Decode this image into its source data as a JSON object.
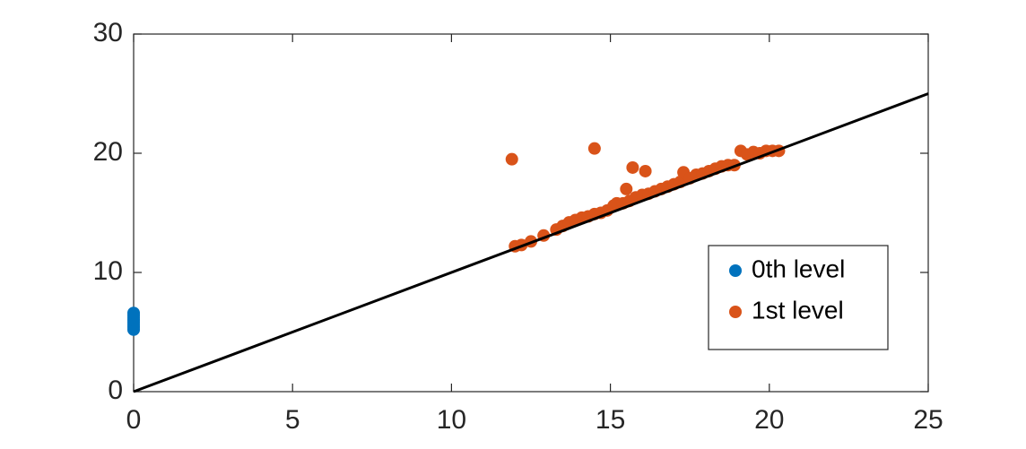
{
  "chart_data": {
    "type": "scatter",
    "xlim": [
      0,
      25
    ],
    "xticks": [
      0,
      5,
      10,
      15,
      20,
      25
    ],
    "ylim": [
      0,
      30
    ],
    "yticks": [
      0,
      10,
      20,
      30
    ],
    "legend": "southeast",
    "series": [
      {
        "name": "0th level",
        "color": "#0072BD",
        "x": [
          0,
          0,
          0,
          0,
          0,
          0,
          0,
          0
        ],
        "y": [
          5.2,
          5.4,
          5.6,
          5.8,
          6.0,
          6.2,
          6.4,
          6.6
        ]
      },
      {
        "name": "1st level",
        "color": "#D95319",
        "x": [
          12.0,
          12.2,
          12.5,
          12.9,
          13.3,
          13.5,
          13.7,
          13.9,
          14.1,
          14.3,
          14.5,
          14.7,
          14.9,
          15.1,
          15.2,
          15.4,
          15.6,
          15.8,
          16.0,
          16.2,
          16.4,
          16.6,
          16.8,
          17.0,
          17.2,
          17.3,
          17.5,
          17.7,
          17.9,
          18.1,
          18.3,
          18.5,
          18.7,
          18.9,
          19.1,
          19.3,
          19.5,
          19.7,
          19.9,
          20.1,
          20.3,
          11.9,
          14.5,
          15.7,
          16.1,
          15.5
        ],
        "y": [
          12.2,
          12.3,
          12.6,
          13.1,
          13.6,
          13.9,
          14.2,
          14.4,
          14.6,
          14.7,
          14.9,
          15.0,
          15.2,
          15.6,
          15.8,
          15.8,
          16.0,
          16.3,
          16.5,
          16.6,
          16.8,
          17.0,
          17.2,
          17.4,
          17.6,
          18.4,
          17.9,
          18.2,
          18.3,
          18.5,
          18.7,
          18.9,
          19.0,
          19.0,
          20.2,
          19.9,
          20.1,
          20.0,
          20.2,
          20.2,
          20.2,
          19.5,
          20.4,
          18.8,
          18.5,
          17.0
        ]
      },
      {
        "style": "line",
        "color": "#000000",
        "x": [
          0,
          25
        ],
        "y": [
          0,
          25
        ]
      }
    ]
  }
}
